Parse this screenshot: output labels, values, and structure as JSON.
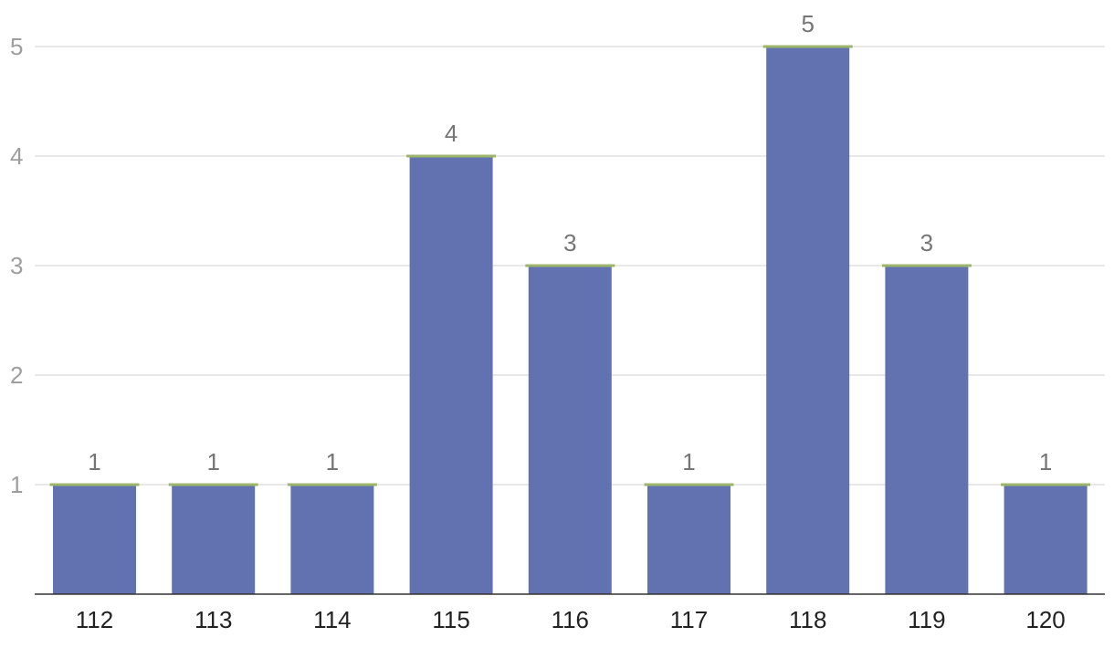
{
  "chart_data": {
    "type": "bar",
    "categories": [
      "112",
      "113",
      "114",
      "115",
      "116",
      "117",
      "118",
      "119",
      "120"
    ],
    "values": [
      1,
      1,
      1,
      4,
      3,
      1,
      5,
      3,
      1
    ],
    "title": "",
    "xlabel": "",
    "ylabel": "",
    "ylim": [
      0,
      5
    ],
    "yticks": [
      "1",
      "2",
      "3",
      "4",
      "5"
    ],
    "grid": true,
    "data_labels": true,
    "colors": {
      "bar": "#6272b0",
      "bar_cap": "#9bb56a"
    }
  }
}
